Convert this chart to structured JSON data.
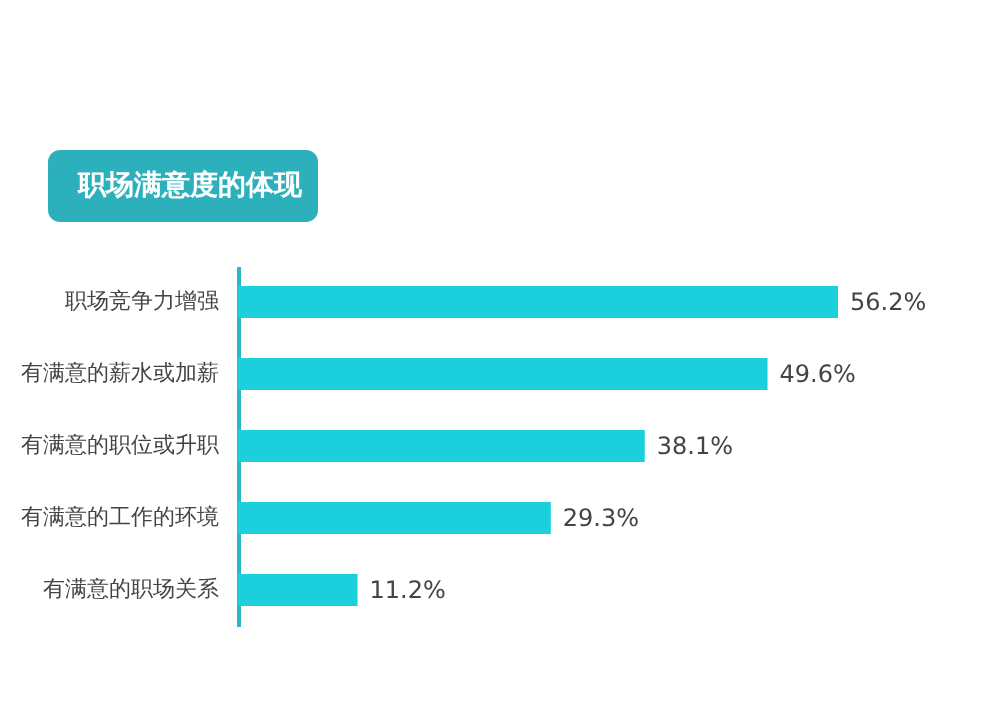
{
  "chart_data": {
    "type": "bar",
    "orientation": "horizontal",
    "title": "职场满意度的体现",
    "categories": [
      "职场竞争力增强",
      "有满意的薪水或加薪",
      "有满意的职位或升职",
      "有满意的工作的环境",
      "有满意的职场关系"
    ],
    "values": [
      56.2,
      49.6,
      38.1,
      29.3,
      11.2
    ],
    "value_labels": [
      "56.2%",
      "49.6%",
      "38.1%",
      "29.3%",
      "11.2%"
    ],
    "color": "#1ccfdc",
    "grid": false
  }
}
